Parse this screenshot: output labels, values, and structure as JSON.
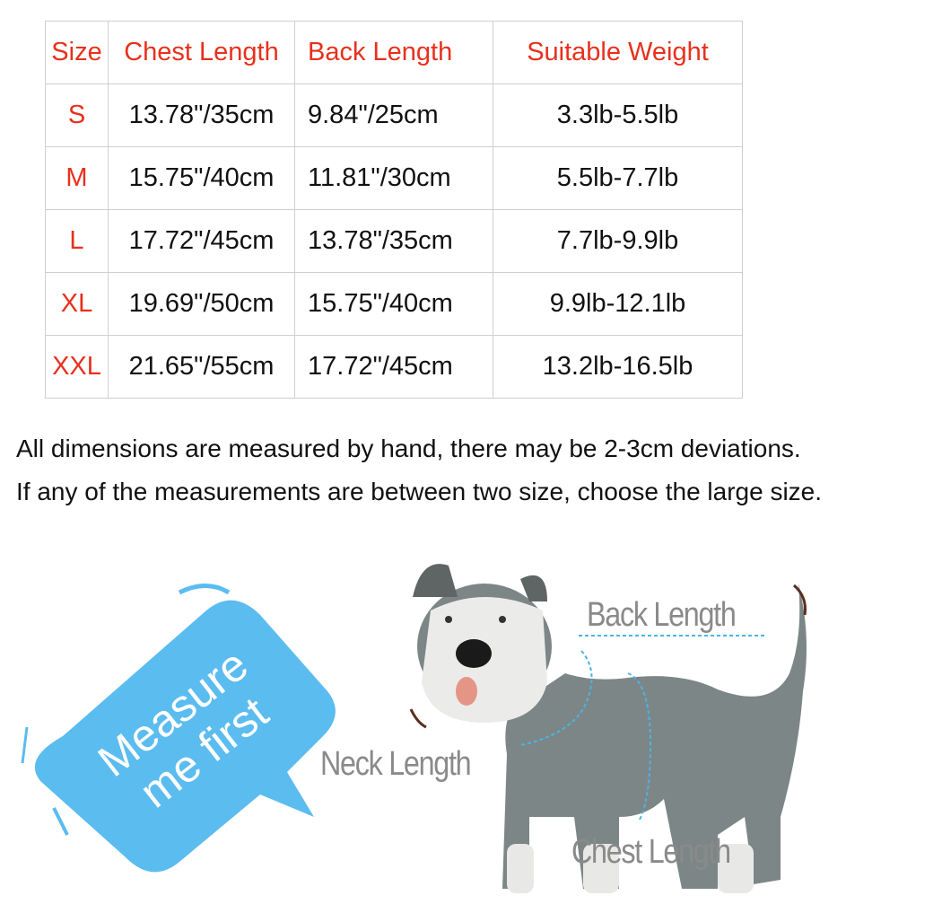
{
  "table": {
    "headers": [
      "Size",
      "Chest Length",
      "Back Length",
      "Suitable Weight"
    ],
    "rows": [
      [
        "S",
        "13.78\"/35cm",
        "9.84\"/25cm",
        "3.3lb-5.5lb"
      ],
      [
        "M",
        "15.75\"/40cm",
        "11.81\"/30cm",
        "5.5lb-7.7lb"
      ],
      [
        "L",
        "17.72\"/45cm",
        "13.78\"/35cm",
        "7.7lb-9.9lb"
      ],
      [
        "XL",
        "19.69\"/50cm",
        "15.75\"/40cm",
        "9.9lb-12.1lb"
      ],
      [
        "XXL",
        "21.65\"/55cm",
        "17.72\"/45cm",
        "13.2lb-16.5lb"
      ]
    ]
  },
  "notes": [
    "All dimensions are measured by hand, there may be 2-3cm deviations.",
    "If any of the measurements are between two size, choose the large size."
  ],
  "illustration": {
    "bubble_text": [
      "Measure",
      "me first"
    ],
    "labels": {
      "back": "Back Length",
      "neck": "Neck Length",
      "chest": "Chest Length"
    }
  },
  "colors": {
    "header_text": "#e8301c",
    "bubble": "#5bbcef",
    "dog_body": "#7d8686",
    "measure_line": "#4ab4e6"
  }
}
